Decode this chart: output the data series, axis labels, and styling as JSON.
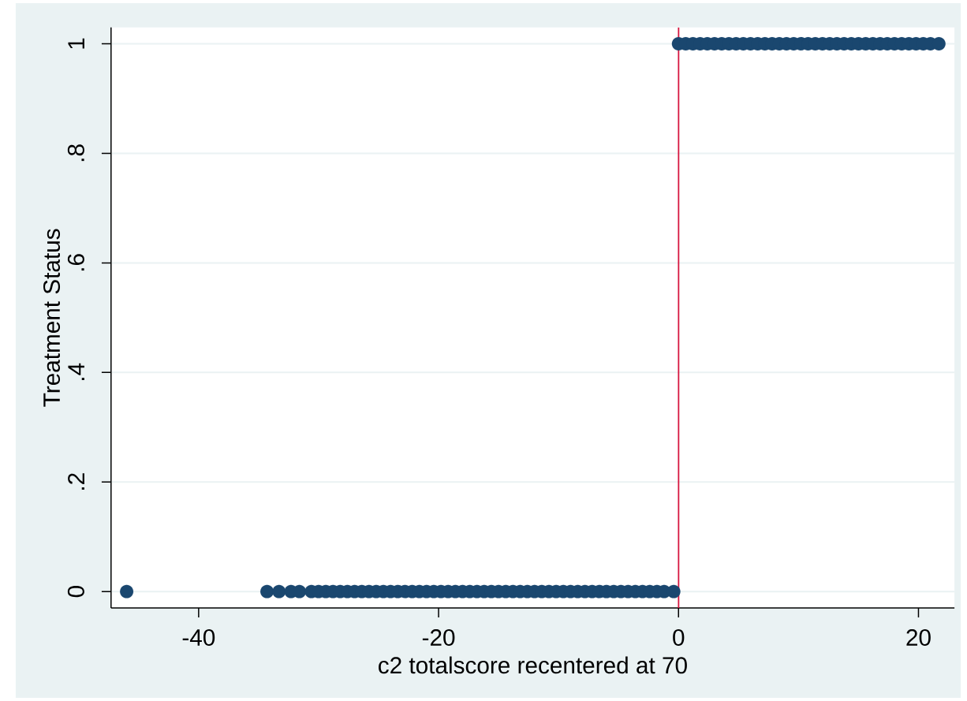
{
  "chart_data": {
    "type": "scatter",
    "xlabel": "c2 totalscore recentered at 70",
    "ylabel": "Treatment Status",
    "x": [
      -46,
      -34.3,
      -33.3,
      -32.3,
      -31.6,
      -30.6,
      -30.0,
      -29.4,
      -28.8,
      -28.2,
      -27.6,
      -27.0,
      -26.4,
      -25.8,
      -25.2,
      -24.6,
      -24.0,
      -23.4,
      -22.8,
      -22.2,
      -21.6,
      -21.0,
      -20.4,
      -19.8,
      -19.2,
      -18.6,
      -18.0,
      -17.4,
      -16.8,
      -16.2,
      -15.6,
      -15.0,
      -14.4,
      -13.8,
      -13.2,
      -12.6,
      -12.0,
      -11.4,
      -10.8,
      -10.2,
      -9.6,
      -9.0,
      -8.4,
      -7.8,
      -7.2,
      -6.6,
      -6.0,
      -5.4,
      -4.8,
      -4.2,
      -3.6,
      -3.0,
      -2.4,
      -1.8,
      -1.2,
      -0.4,
      0,
      0.6,
      1.2,
      1.8,
      2.4,
      3.0,
      3.6,
      4.2,
      4.8,
      5.4,
      6.0,
      6.6,
      7.2,
      7.8,
      8.4,
      9.0,
      9.6,
      10.2,
      10.8,
      11.4,
      12.0,
      12.6,
      13.2,
      13.8,
      14.4,
      15.0,
      15.6,
      16.2,
      16.8,
      17.4,
      18.0,
      18.6,
      19.2,
      19.8,
      20.4,
      21.0,
      21.7
    ],
    "values": [
      0,
      0,
      0,
      0,
      0,
      0,
      0,
      0,
      0,
      0,
      0,
      0,
      0,
      0,
      0,
      0,
      0,
      0,
      0,
      0,
      0,
      0,
      0,
      0,
      0,
      0,
      0,
      0,
      0,
      0,
      0,
      0,
      0,
      0,
      0,
      0,
      0,
      0,
      0,
      0,
      0,
      0,
      0,
      0,
      0,
      0,
      0,
      0,
      0,
      0,
      0,
      0,
      0,
      0,
      0,
      0,
      1,
      1,
      1,
      1,
      1,
      1,
      1,
      1,
      1,
      1,
      1,
      1,
      1,
      1,
      1,
      1,
      1,
      1,
      1,
      1,
      1,
      1,
      1,
      1,
      1,
      1,
      1,
      1,
      1,
      1,
      1,
      1,
      1,
      1,
      1,
      1,
      1
    ],
    "color": "#1a476f",
    "marker": "circle",
    "xlim": [
      -47.3,
      23.0
    ],
    "ylim": [
      -0.03,
      1.03
    ],
    "xticks": [
      -40,
      -20,
      0,
      20
    ],
    "yticks": [
      0,
      {
        "value": 0.2,
        "label": ".2"
      },
      {
        "value": 0.4,
        "label": ".4"
      },
      {
        "value": 0.6,
        "label": ".6"
      },
      {
        "value": 0.8,
        "label": ".8"
      },
      1
    ],
    "grid": "y",
    "ref_lines": [
      {
        "axis": "x",
        "value": 0,
        "color": "#d6163f"
      }
    ]
  }
}
